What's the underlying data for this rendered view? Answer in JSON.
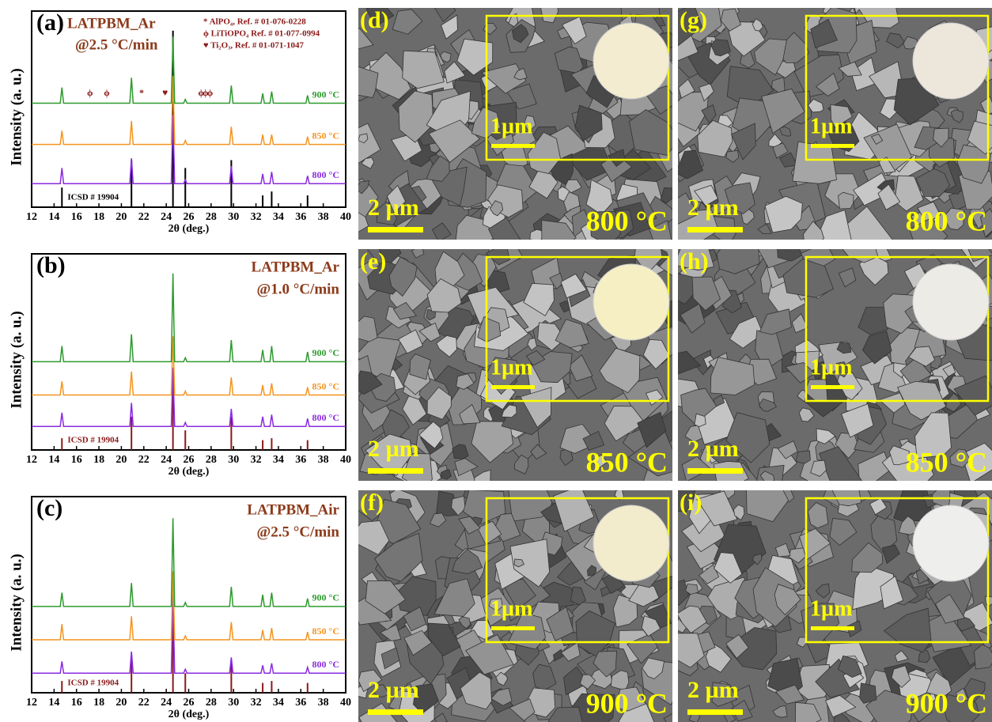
{
  "chart_data": [
    {
      "type": "line",
      "panel": "(a)",
      "title": "LATPBM_Ar",
      "subtitle": "@2.5 °C/min",
      "y_label": "Intensity (a. u.)",
      "x_label": "2θ (deg.)",
      "xlim": [
        12,
        40
      ],
      "xticks": [
        12,
        14,
        16,
        18,
        20,
        22,
        24,
        26,
        28,
        30,
        32,
        34,
        36,
        38,
        40
      ],
      "ylim": [
        0,
        100
      ],
      "x": [
        12,
        14.55,
        14.7,
        14.85,
        20.75,
        20.9,
        21.05,
        24.45,
        24.6,
        24.75,
        25.55,
        25.7,
        25.85,
        29.65,
        29.8,
        29.95,
        32.45,
        32.6,
        32.75,
        33.25,
        33.4,
        33.55,
        36.45,
        36.6,
        36.75,
        40
      ],
      "series": [
        {
          "name": "800 °C",
          "color": "#8a2be2",
          "values": [
            12,
            12,
            20,
            12,
            12,
            25,
            12,
            12,
            47,
            12,
            12,
            14,
            12,
            12,
            21,
            12,
            12,
            17,
            12,
            12,
            18,
            12,
            12,
            16,
            12,
            12
          ]
        },
        {
          "name": "850 °C",
          "color": "#f4941f",
          "values": [
            32,
            32,
            39,
            32,
            32,
            44,
            32,
            32,
            67,
            32,
            32,
            34,
            32,
            32,
            41,
            32,
            32,
            37,
            32,
            32,
            37,
            32,
            32,
            36,
            32,
            32
          ]
        },
        {
          "name": "900 °C",
          "color": "#2e9a2e",
          "values": [
            53,
            53,
            61,
            53,
            53,
            66,
            53,
            53,
            87,
            53,
            53,
            55,
            53,
            53,
            62,
            53,
            53,
            58,
            53,
            53,
            59,
            53,
            53,
            57,
            53,
            53
          ]
        }
      ],
      "reference": {
        "name": "ICSD # 19904",
        "color": "#000000",
        "x": [
          14.7,
          20.9,
          24.6,
          25.7,
          29.8,
          32.6,
          33.4,
          36.6
        ],
        "values": [
          10,
          24,
          90,
          20,
          24,
          6,
          8,
          6
        ]
      },
      "phase_legend": [
        "* AlPO₄, Ref. # 01-076-0228",
        "ϕ LiTiOPO₄ Ref. # 01-077-0994",
        "♥ Ti₂O₃, Ref. # 01-071-1047"
      ],
      "annotations": [
        {
          "text": "ϕ",
          "x": 17.2,
          "y": 58
        },
        {
          "text": "ϕ",
          "x": 18.7,
          "y": 58
        },
        {
          "text": "*",
          "x": 21.8,
          "y": 58
        },
        {
          "text": "♥",
          "x": 23.9,
          "y": 58
        },
        {
          "text": "ϕ",
          "x": 27.1,
          "y": 58
        },
        {
          "text": "ϕ",
          "x": 27.5,
          "y": 58
        },
        {
          "text": "ϕ",
          "x": 27.9,
          "y": 58
        }
      ]
    },
    {
      "type": "line",
      "panel": "(b)",
      "title": "LATPBM_Ar",
      "subtitle": "@1.0 °C/min",
      "y_label": "Intensity (a. u.)",
      "x_label": "2θ (deg.)",
      "xlim": [
        12,
        40
      ],
      "xticks": [
        12,
        14,
        16,
        18,
        20,
        22,
        24,
        26,
        28,
        30,
        32,
        34,
        36,
        38,
        40
      ],
      "ylim": [
        0,
        100
      ],
      "x": [
        12,
        14.55,
        14.7,
        14.85,
        20.75,
        20.9,
        21.05,
        24.45,
        24.6,
        24.75,
        25.55,
        25.7,
        25.85,
        29.65,
        29.8,
        29.95,
        32.45,
        32.6,
        32.75,
        33.25,
        33.4,
        33.55,
        36.45,
        36.6,
        36.75,
        40
      ],
      "series": [
        {
          "name": "800 °C",
          "color": "#8a2be2",
          "values": [
            12,
            12,
            19,
            12,
            12,
            24,
            12,
            12,
            42,
            12,
            12,
            14,
            12,
            12,
            21,
            12,
            12,
            17,
            12,
            12,
            18,
            12,
            12,
            16,
            12,
            12
          ]
        },
        {
          "name": "850 °C",
          "color": "#f4941f",
          "values": [
            28,
            28,
            35,
            28,
            28,
            40,
            28,
            28,
            58,
            28,
            28,
            30,
            28,
            28,
            37,
            28,
            28,
            33,
            28,
            28,
            34,
            28,
            28,
            32,
            28,
            28
          ]
        },
        {
          "name": "900 °C",
          "color": "#2e9a2e",
          "values": [
            45,
            45,
            53,
            45,
            45,
            59,
            45,
            45,
            90,
            45,
            45,
            47,
            45,
            45,
            56,
            45,
            45,
            51,
            45,
            45,
            53,
            45,
            45,
            50,
            45,
            45
          ]
        }
      ],
      "reference": {
        "name": "ICSD # 19904",
        "color": "#8b1a1a",
        "x": [
          14.7,
          20.9,
          24.6,
          25.7,
          29.8,
          32.6,
          33.4,
          36.6
        ],
        "values": [
          6,
          17,
          40,
          10,
          17,
          5,
          6,
          5
        ]
      }
    },
    {
      "type": "line",
      "panel": "(c)",
      "title": "LATPBM_Air",
      "subtitle": "@2.5 °C/min",
      "y_label": "Intensity (a. u.)",
      "x_label": "2θ (deg.)",
      "xlim": [
        12,
        40
      ],
      "xticks": [
        12,
        14,
        16,
        18,
        20,
        22,
        24,
        26,
        28,
        30,
        32,
        34,
        36,
        38,
        40
      ],
      "ylim": [
        0,
        100
      ],
      "x": [
        12,
        14.55,
        14.7,
        14.85,
        20.75,
        20.9,
        21.05,
        24.45,
        24.6,
        24.75,
        25.55,
        25.7,
        25.85,
        29.65,
        29.8,
        29.95,
        32.45,
        32.6,
        32.75,
        33.25,
        33.4,
        33.55,
        36.45,
        36.6,
        36.75,
        40
      ],
      "series": [
        {
          "name": "800 °C",
          "color": "#8a2be2",
          "values": [
            10,
            10,
            16,
            10,
            10,
            21,
            10,
            10,
            50,
            10,
            10,
            12,
            10,
            10,
            18,
            10,
            10,
            14,
            10,
            10,
            15,
            10,
            10,
            13,
            10,
            10
          ]
        },
        {
          "name": "850 °C",
          "color": "#f4941f",
          "values": [
            27,
            27,
            35,
            27,
            27,
            39,
            27,
            27,
            62,
            27,
            27,
            29,
            27,
            27,
            36,
            27,
            27,
            32,
            27,
            27,
            33,
            27,
            27,
            31,
            27,
            27
          ]
        },
        {
          "name": "900 °C",
          "color": "#2e9a2e",
          "values": [
            44,
            44,
            51,
            44,
            44,
            56,
            44,
            44,
            89,
            44,
            44,
            46,
            44,
            44,
            54,
            44,
            44,
            50,
            44,
            44,
            51,
            44,
            44,
            48,
            44,
            44
          ]
        }
      ],
      "reference": {
        "name": "ICSD # 19904",
        "color": "#8b1a1a",
        "x": [
          14.7,
          20.9,
          24.6,
          25.7,
          29.8,
          32.6,
          33.4,
          36.6
        ],
        "values": [
          6,
          17,
          40,
          10,
          17,
          5,
          6,
          5
        ]
      }
    }
  ],
  "sem_panels": [
    {
      "label": "(d)",
      "scale_bar": "2 µm",
      "inset_scale_bar": "1µm",
      "temperature": "800 °C",
      "disc_color": "#f3ecd0"
    },
    {
      "label": "(e)",
      "scale_bar": "2 µm",
      "inset_scale_bar": "1µm",
      "temperature": "850 °C",
      "disc_color": "#f6efc4"
    },
    {
      "label": "(f)",
      "scale_bar": "2 µm",
      "inset_scale_bar": "1µm",
      "temperature": "900 °C",
      "disc_color": "#f2ebcc"
    },
    {
      "label": "(g)",
      "scale_bar": "2 µm",
      "inset_scale_bar": "1µm",
      "temperature": "800 °C",
      "disc_color": "#ede6da"
    },
    {
      "label": "(h)",
      "scale_bar": "2 µm",
      "inset_scale_bar": "1µm",
      "temperature": "850 °C",
      "disc_color": "#ecebe6"
    },
    {
      "label": "(i)",
      "scale_bar": "2 µm",
      "inset_scale_bar": "1µm",
      "temperature": "900 °C",
      "disc_color": "#eeeeec"
    }
  ]
}
